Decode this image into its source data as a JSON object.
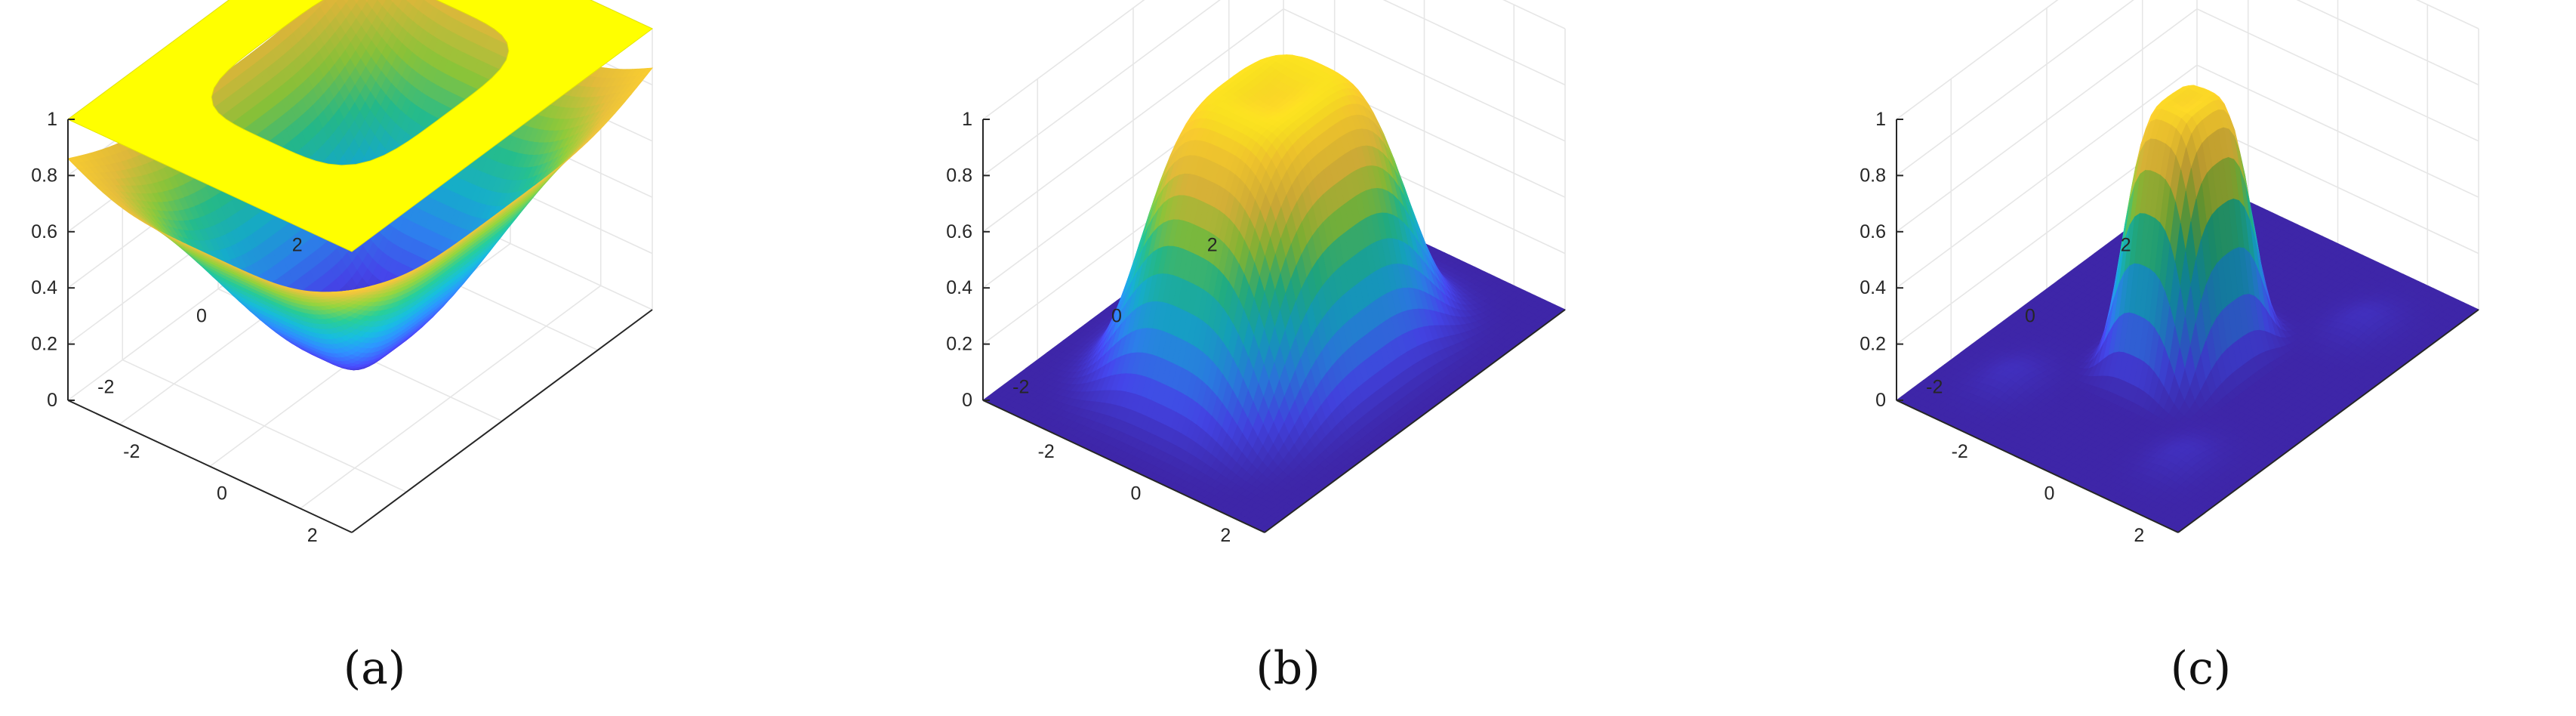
{
  "colormap": [
    "#3e26a8",
    "#4748f3",
    "#2e87f7",
    "#16b4d4",
    "#26c391",
    "#8fcb3b",
    "#e4bd3c",
    "#fcce2e",
    "#f9fb0e"
  ],
  "chart_data": [
    {
      "type": "surface",
      "caption": "(a)",
      "zticks": [
        "0",
        "0.2",
        "0.4",
        "0.6",
        "0.8",
        "1"
      ],
      "xticks": [
        "-2",
        "0",
        "2"
      ],
      "yticks": [
        "2",
        "0",
        "-2"
      ],
      "zlim": [
        0,
        1
      ],
      "xlim": [
        -3.14,
        3.14
      ],
      "ylim": [
        -3.14,
        3.14
      ],
      "grid": true,
      "surface": {
        "shape": "inverted-well",
        "outer_value": 1,
        "min_value": 0.0,
        "ring_value": 0.7
      },
      "plane": {
        "z": 1,
        "color": "#ffff00",
        "hole_halfwidth": 1.9
      }
    },
    {
      "type": "surface",
      "caption": "(b)",
      "zticks": [
        "0",
        "0.2",
        "0.4",
        "0.6",
        "0.8",
        "1"
      ],
      "xticks": [
        "-2",
        "0",
        "2"
      ],
      "yticks": [
        "2",
        "0",
        "-2"
      ],
      "zlim": [
        0,
        1
      ],
      "xlim": [
        -3.14,
        3.14
      ],
      "ylim": [
        -3.14,
        3.14
      ],
      "grid": true,
      "surface": {
        "shape": "flat-top bump",
        "peak": 1,
        "center_dip": 0.9,
        "half_width": 2.1
      }
    },
    {
      "type": "surface",
      "caption": "(c)",
      "zticks": [
        "0",
        "0.2",
        "0.4",
        "0.6",
        "0.8",
        "1"
      ],
      "xticks": [
        "-2",
        "0",
        "2"
      ],
      "yticks": [
        "2",
        "0",
        "-2"
      ],
      "zlim": [
        0,
        1
      ],
      "xlim": [
        -3.14,
        3.14
      ],
      "ylim": [
        -3.14,
        3.14
      ],
      "grid": true,
      "surface": {
        "shape": "narrow bump",
        "peak": 0.95,
        "center_dip": 0.9,
        "half_width": 1.0,
        "side_lobes": 0.04
      }
    }
  ]
}
